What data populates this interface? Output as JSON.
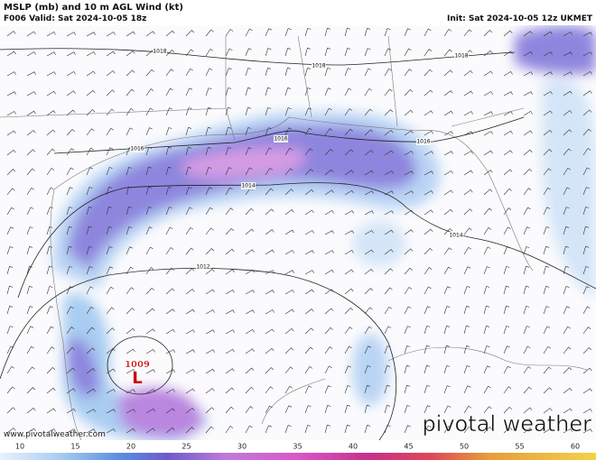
{
  "header": {
    "title": "MSLP (mb) and 10 m AGL Wind (kt)",
    "valid": "F006 Valid: Sat 2024-10-05 18z",
    "init": "Init: Sat 2024-10-05 12z UKMET"
  },
  "isobars": [
    {
      "label": "1018"
    },
    {
      "label": "1018"
    },
    {
      "label": "1018"
    },
    {
      "label": "1016"
    },
    {
      "label": "1016"
    },
    {
      "label": "1016"
    },
    {
      "label": "1014"
    },
    {
      "label": "1014"
    },
    {
      "label": "1012"
    }
  ],
  "low": {
    "pressure": "1009",
    "symbol": "L"
  },
  "watermark": "www.pivotalweather.com",
  "logo": "pivotal weather",
  "colorbar": {
    "ticks": [
      10,
      15,
      20,
      25,
      30,
      35,
      40,
      45,
      50,
      55,
      60
    ]
  }
}
